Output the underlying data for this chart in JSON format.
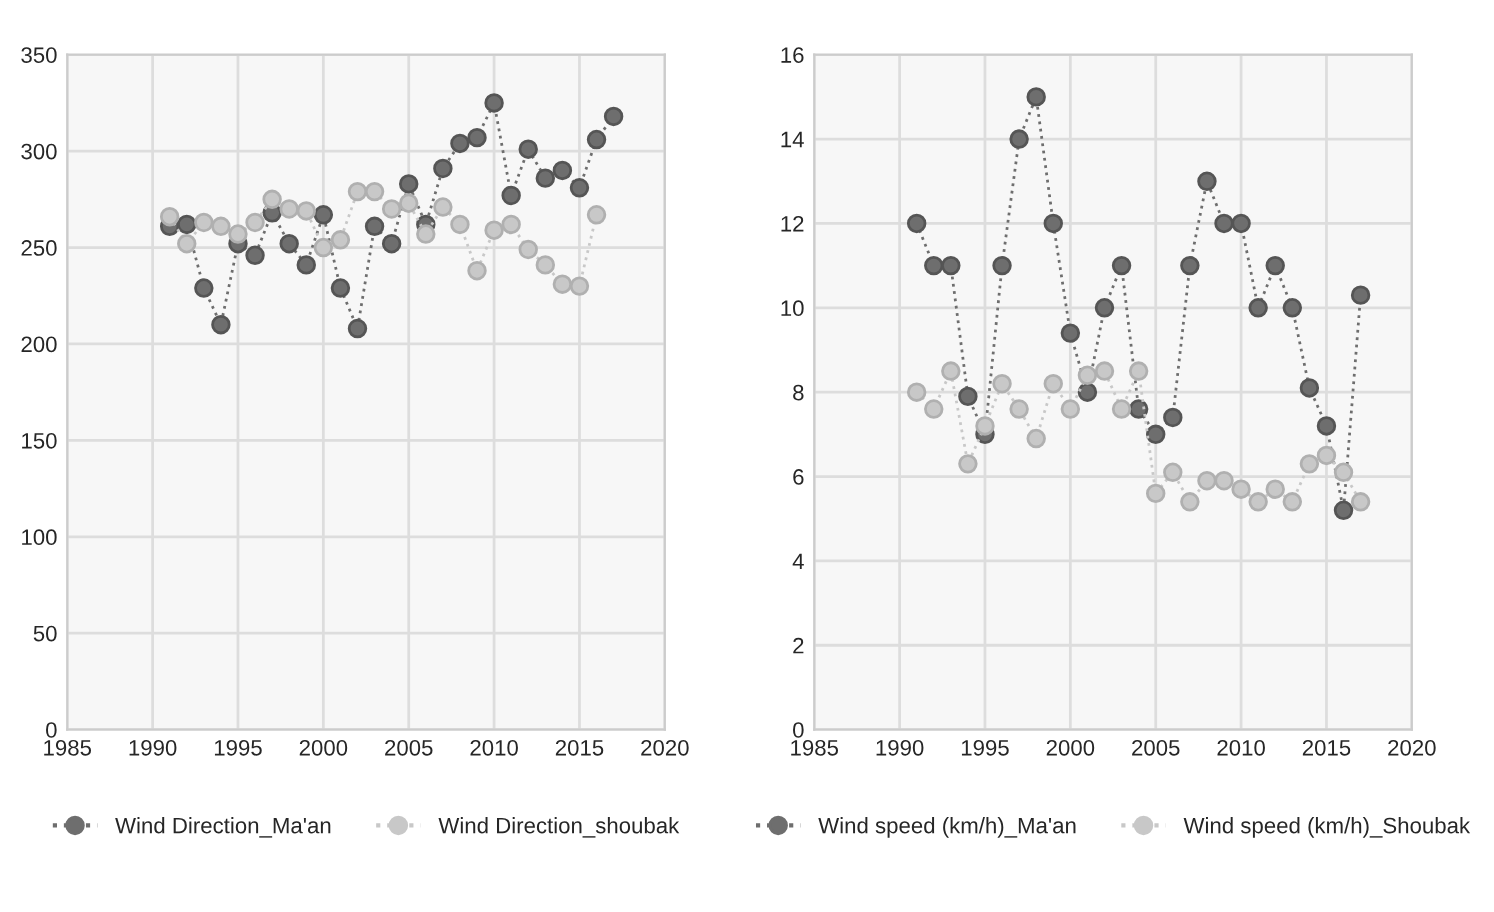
{
  "chart_data": [
    {
      "type": "line",
      "x": [
        1991,
        1992,
        1993,
        1994,
        1995,
        1996,
        1997,
        1998,
        1999,
        2000,
        2001,
        2002,
        2003,
        2004,
        2005,
        2006,
        2007,
        2008,
        2009,
        2010,
        2011,
        2012,
        2013,
        2014,
        2015,
        2016,
        2017
      ],
      "series": [
        {
          "name": "Wind Direction_Ma'an",
          "color": "#6e6e6e",
          "values": [
            261,
            262,
            229,
            210,
            252,
            246,
            268,
            252,
            241,
            267,
            229,
            208,
            261,
            252,
            283,
            262,
            291,
            304,
            307,
            325,
            277,
            301,
            286,
            290,
            281,
            306,
            318
          ]
        },
        {
          "name": "Wind Direction_shoubak",
          "color": "#c8c8c8",
          "values": [
            266,
            252,
            263,
            261,
            257,
            263,
            275,
            270,
            269,
            250,
            254,
            279,
            279,
            270,
            273,
            257,
            271,
            262,
            238,
            259,
            262,
            249,
            241,
            231,
            230,
            267,
            null
          ]
        }
      ],
      "xlim": [
        1985,
        2020
      ],
      "xticks": [
        1985,
        1990,
        1995,
        2000,
        2005,
        2010,
        2015,
        2020
      ],
      "ylim": [
        0,
        350
      ],
      "yticks": [
        0,
        50,
        100,
        150,
        200,
        250,
        300,
        350
      ],
      "grid": true,
      "legend": "bottom",
      "marker": "circle",
      "line_style": "dotted"
    },
    {
      "type": "line",
      "x": [
        1991,
        1992,
        1993,
        1994,
        1995,
        1996,
        1997,
        1998,
        1999,
        2000,
        2001,
        2002,
        2003,
        2004,
        2005,
        2006,
        2007,
        2008,
        2009,
        2010,
        2011,
        2012,
        2013,
        2014,
        2015,
        2016,
        2017
      ],
      "series": [
        {
          "name": "Wind speed (km/h)_Ma'an",
          "color": "#6e6e6e",
          "values": [
            12,
            11,
            11,
            7.9,
            7.0,
            11,
            14,
            15,
            12,
            9.4,
            8.0,
            10,
            11,
            7.6,
            7.0,
            7.4,
            11,
            13,
            12,
            12,
            10,
            11,
            10,
            8.1,
            7.2,
            5.2,
            10.3
          ]
        },
        {
          "name": "Wind speed (km/h)_Shoubak",
          "color": "#c8c8c8",
          "values": [
            8.0,
            7.6,
            8.5,
            6.3,
            7.2,
            8.2,
            7.6,
            6.9,
            8.2,
            7.6,
            8.4,
            8.5,
            7.6,
            8.5,
            5.6,
            6.1,
            5.4,
            5.9,
            5.9,
            5.7,
            5.4,
            5.7,
            5.4,
            6.3,
            6.5,
            6.1,
            5.4
          ]
        }
      ],
      "xlim": [
        1985,
        2020
      ],
      "xticks": [
        1985,
        1990,
        1995,
        2000,
        2005,
        2010,
        2015,
        2020
      ],
      "ylim": [
        0,
        16
      ],
      "yticks": [
        0,
        2,
        4,
        6,
        8,
        10,
        12,
        14,
        16
      ],
      "grid": true,
      "legend": "bottom",
      "marker": "circle",
      "line_style": "dotted"
    }
  ]
}
